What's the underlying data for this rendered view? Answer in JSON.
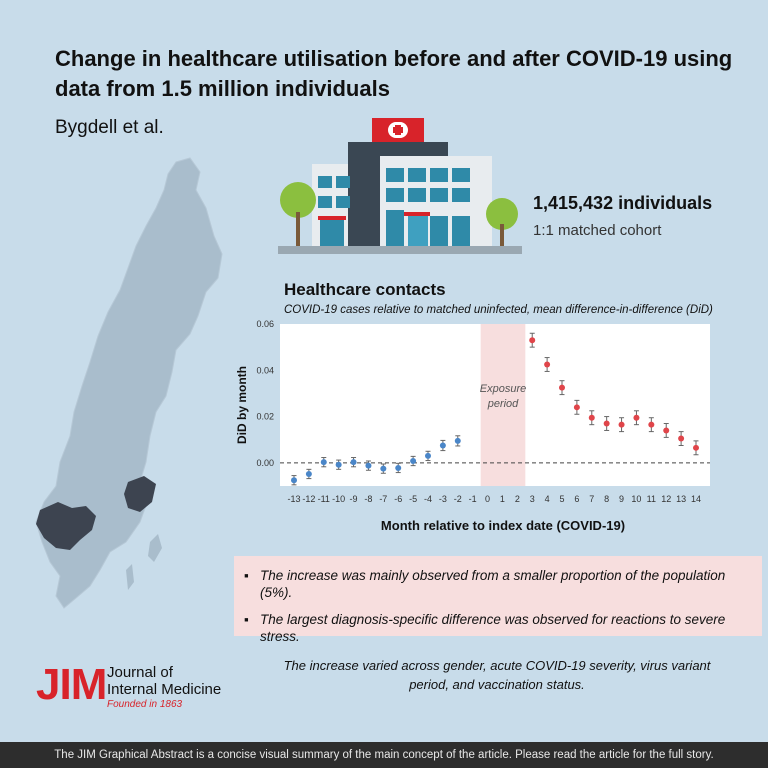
{
  "header": {
    "title": "Change in healthcare utilisation before and after COVID-19 using data from 1.5 million individuals",
    "authors": "Bygdell et al."
  },
  "icons": {
    "map": "sweden-map-icon",
    "building": "hospital-building-icon"
  },
  "cohort": {
    "individuals": "1,415,432 individuals",
    "matched": "1:1 matched cohort"
  },
  "chart_data": {
    "type": "scatter",
    "title": "Healthcare contacts",
    "subtitle": "COVID-19 cases relative to matched uninfected, mean difference-in-difference (DiD)",
    "xlabel": "Month relative to index date (COVID-19)",
    "ylabel": "DiD by month",
    "x_ticks": [
      -13,
      -12,
      -11,
      -10,
      -9,
      -8,
      -7,
      -6,
      -5,
      -4,
      -3,
      -2,
      -1,
      0,
      1,
      2,
      3,
      4,
      5,
      6,
      7,
      8,
      9,
      10,
      11,
      12,
      13,
      14
    ],
    "y_ticks": [
      "0.00",
      "0.02",
      "0.04",
      "0.06"
    ],
    "ylim": [
      -0.01,
      0.06
    ],
    "exposure_label": [
      "Exposure",
      "period"
    ],
    "exposure_range": [
      -1,
      2
    ],
    "series": [
      {
        "color": "#4a86c8",
        "points": [
          {
            "x": -13,
            "y": -0.0075,
            "lo": -0.0095,
            "hi": -0.0055
          },
          {
            "x": -12,
            "y": -0.0048,
            "lo": -0.0068,
            "hi": -0.0028
          },
          {
            "x": -11,
            "y": 0.0003,
            "lo": -0.0017,
            "hi": 0.0023
          },
          {
            "x": -10,
            "y": -0.0008,
            "lo": -0.0028,
            "hi": 0.0012
          },
          {
            "x": -9,
            "y": 0.0003,
            "lo": -0.0017,
            "hi": 0.0023
          },
          {
            "x": -8,
            "y": -0.0012,
            "lo": -0.0032,
            "hi": 0.0008
          },
          {
            "x": -7,
            "y": -0.0025,
            "lo": -0.0045,
            "hi": -0.0005
          },
          {
            "x": -6,
            "y": -0.0022,
            "lo": -0.0042,
            "hi": -0.0002
          },
          {
            "x": -5,
            "y": 0.0008,
            "lo": -0.0012,
            "hi": 0.0028
          },
          {
            "x": -4,
            "y": 0.003,
            "lo": 0.001,
            "hi": 0.005
          },
          {
            "x": -3,
            "y": 0.0075,
            "lo": 0.0053,
            "hi": 0.0097
          },
          {
            "x": -2,
            "y": 0.0095,
            "lo": 0.0073,
            "hi": 0.0117
          }
        ]
      },
      {
        "color": "#e0454a",
        "points": [
          {
            "x": 3,
            "y": 0.053,
            "lo": 0.05,
            "hi": 0.056
          },
          {
            "x": 4,
            "y": 0.0425,
            "lo": 0.0395,
            "hi": 0.0455
          },
          {
            "x": 5,
            "y": 0.0325,
            "lo": 0.0295,
            "hi": 0.0355
          },
          {
            "x": 6,
            "y": 0.024,
            "lo": 0.021,
            "hi": 0.027
          },
          {
            "x": 7,
            "y": 0.0195,
            "lo": 0.0165,
            "hi": 0.0225
          },
          {
            "x": 8,
            "y": 0.017,
            "lo": 0.014,
            "hi": 0.02
          },
          {
            "x": 9,
            "y": 0.0165,
            "lo": 0.0135,
            "hi": 0.0195
          },
          {
            "x": 10,
            "y": 0.0195,
            "lo": 0.0165,
            "hi": 0.0225
          },
          {
            "x": 11,
            "y": 0.0165,
            "lo": 0.0135,
            "hi": 0.0195
          },
          {
            "x": 12,
            "y": 0.014,
            "lo": 0.011,
            "hi": 0.017
          },
          {
            "x": 13,
            "y": 0.0105,
            "lo": 0.0075,
            "hi": 0.0135
          },
          {
            "x": 14,
            "y": 0.0065,
            "lo": 0.0035,
            "hi": 0.0095
          }
        ]
      }
    ]
  },
  "findings": [
    "The increase was mainly observed from a smaller proportion of the population (5%).",
    "The largest diagnosis-specific difference was observed for reactions to severe stress."
  ],
  "bullet_char": "▪",
  "logo": {
    "mark": "JIM",
    "journal_line1": "Journal of",
    "journal_line2": "Internal Medicine",
    "founded": "Founded in 1863"
  },
  "conclusion": "The increase varied across gender, acute COVID-19 severity, virus variant period, and vaccination status.",
  "footer": "The JIM Graphical Abstract is a concise visual summary of the main concept of the article. Please read the article for the full story."
}
